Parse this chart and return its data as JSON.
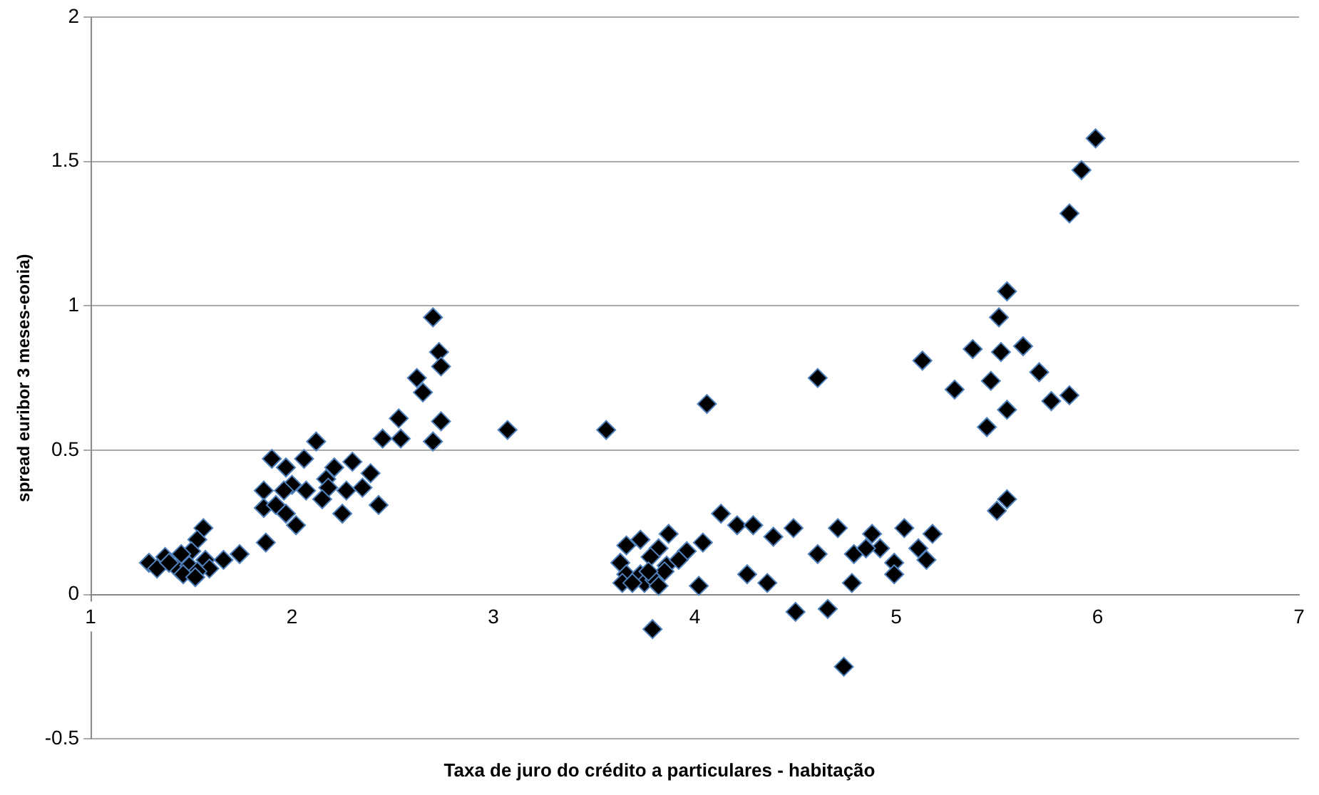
{
  "chart_data": {
    "type": "scatter",
    "xlabel": "Taxa de juro do crédito a particulares - habitação",
    "ylabel": "spread euribor 3 meses-eonia)",
    "xlim": [
      1,
      7
    ],
    "xticks": [
      1,
      2,
      3,
      4,
      5,
      6,
      7
    ],
    "ylim": [
      -0.5,
      2
    ],
    "yticks": [
      -0.5,
      0,
      0.5,
      1,
      1.5,
      2
    ],
    "grid": "y",
    "legend": false,
    "marker": "diamond",
    "series": [
      {
        "color": "#000000",
        "x": [
          2.7,
          2.73,
          2.74,
          2.62,
          2.65,
          2.53,
          2.45,
          2.54,
          2.74,
          2.7,
          2.12,
          1.9,
          2.06,
          1.97,
          2.21,
          2.3,
          2.39,
          2.0,
          2.07,
          2.17,
          2.18,
          2.27,
          2.35,
          1.86,
          1.96,
          2.15,
          2.43,
          1.86,
          1.92,
          1.97,
          2.02,
          2.25,
          1.56,
          1.87,
          1.74,
          1.66,
          1.53,
          1.5,
          1.45,
          1.37,
          1.29,
          1.33,
          1.43,
          1.49,
          1.57,
          1.59,
          1.53,
          1.46,
          1.52,
          1.39,
          3.07,
          3.56,
          4.06,
          4.13,
          4.21,
          4.29,
          4.39,
          4.49,
          4.71,
          4.61,
          4.79,
          4.88,
          4.92,
          4.85,
          5.04,
          5.18,
          5.11,
          5.15,
          4.99,
          4.99,
          4.78,
          4.26,
          4.36,
          4.02,
          4.5,
          4.66,
          4.74,
          3.79,
          3.66,
          3.73,
          3.87,
          4.04,
          3.96,
          3.82,
          3.63,
          3.78,
          3.86,
          3.92,
          3.66,
          3.64,
          3.73,
          3.75,
          3.8,
          3.82,
          3.85,
          3.77,
          3.69,
          4.61,
          5.99,
          5.92,
          5.86,
          5.55,
          5.51,
          5.38,
          5.52,
          5.63,
          5.13,
          5.71,
          5.47,
          5.29,
          5.86,
          5.77,
          5.55,
          5.45,
          5.55,
          5.5
        ],
        "values": [
          0.96,
          0.84,
          0.79,
          0.75,
          0.7,
          0.61,
          0.54,
          0.54,
          0.6,
          0.53,
          0.53,
          0.47,
          0.47,
          0.44,
          0.44,
          0.46,
          0.42,
          0.38,
          0.36,
          0.4,
          0.37,
          0.36,
          0.37,
          0.36,
          0.36,
          0.33,
          0.31,
          0.3,
          0.31,
          0.28,
          0.24,
          0.28,
          0.23,
          0.18,
          0.14,
          0.12,
          0.19,
          0.15,
          0.14,
          0.13,
          0.11,
          0.09,
          0.09,
          0.1,
          0.12,
          0.09,
          0.08,
          0.07,
          0.06,
          0.11,
          0.57,
          0.57,
          0.66,
          0.28,
          0.24,
          0.24,
          0.2,
          0.23,
          0.23,
          0.14,
          0.14,
          0.21,
          0.16,
          0.16,
          0.23,
          0.21,
          0.16,
          0.12,
          0.11,
          0.07,
          0.04,
          0.07,
          0.04,
          0.03,
          -0.06,
          -0.05,
          -0.25,
          -0.12,
          0.17,
          0.19,
          0.21,
          0.18,
          0.15,
          0.16,
          0.11,
          0.13,
          0.1,
          0.12,
          0.07,
          0.04,
          0.07,
          0.04,
          0.05,
          0.03,
          0.08,
          0.08,
          0.04,
          0.75,
          1.58,
          1.47,
          1.32,
          1.05,
          0.96,
          0.85,
          0.84,
          0.86,
          0.81,
          0.77,
          0.74,
          0.71,
          0.69,
          0.67,
          0.64,
          0.58,
          0.33,
          0.29
        ]
      }
    ]
  }
}
